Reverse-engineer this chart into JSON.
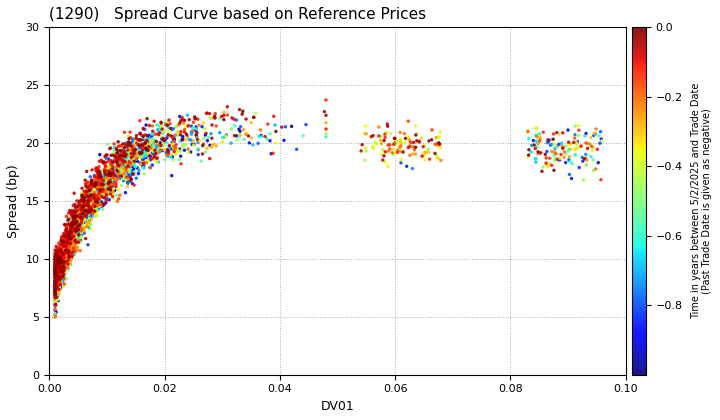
{
  "title": "(1290)   Spread Curve based on Reference Prices",
  "xlabel": "DV01",
  "ylabel": "Spread (bp)",
  "xlim": [
    0.0,
    0.1
  ],
  "ylim": [
    0,
    30
  ],
  "xticks": [
    0.0,
    0.02,
    0.04,
    0.06,
    0.08,
    0.1
  ],
  "yticks": [
    0,
    5,
    10,
    15,
    20,
    25,
    30
  ],
  "colorbar_label": "Time in years between 5/2/2025 and Trade Date\n(Past Trade Date is given as negative)",
  "colorbar_ticks": [
    0.0,
    -0.2,
    -0.4,
    -0.6,
    -0.8
  ],
  "vmin": -1.0,
  "vmax": 0.0,
  "background": "#ffffff",
  "grid_color": "#aaaaaa",
  "grid_style": "dotted",
  "figsize": [
    7.2,
    4.2
  ],
  "dpi": 100
}
